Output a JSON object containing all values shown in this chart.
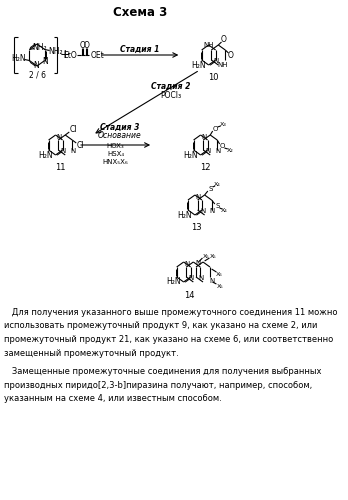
{
  "title": "Схема 3",
  "bg_color": "#ffffff",
  "p1_lines": [
    "   Для получения указанного выше промежуточного соединения 11 можно",
    "использовать промежуточный продукт 9, как указано на схеме 2, или",
    "промежуточный продукт 21, как указано на схеме 6, или соответственно",
    "замещенный промежуточный продукт."
  ],
  "p2_lines": [
    "   Замещенные промежуточные соединения для получения выбранных",
    "производных пиридо[2,3-b]пиразина получают, например, способом,",
    "указанным на схеме 4, или известным способом."
  ]
}
